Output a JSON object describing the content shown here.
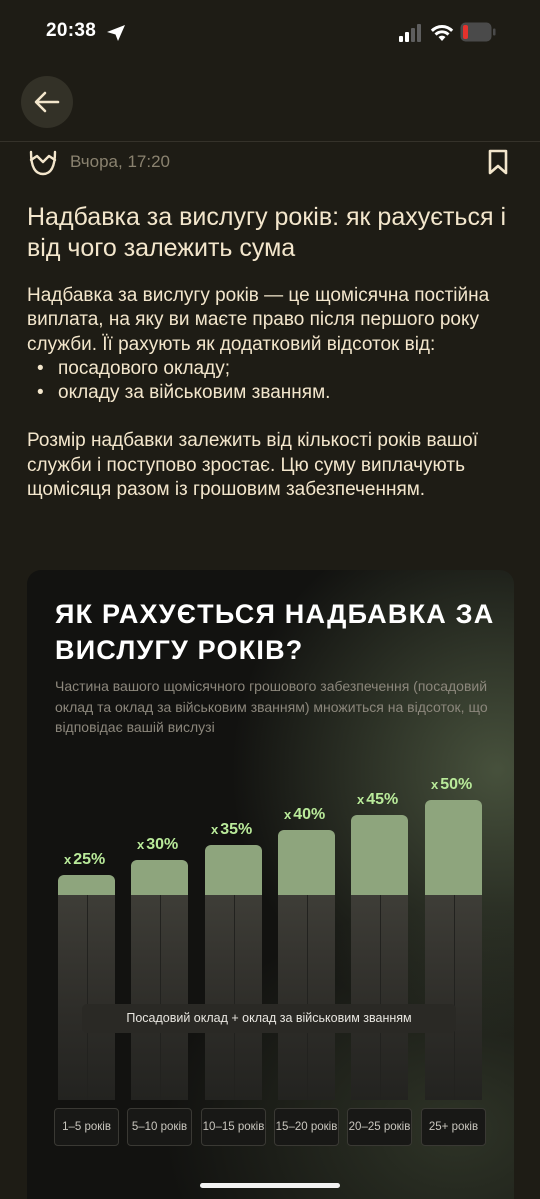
{
  "status_bar": {
    "time": "20:38"
  },
  "article": {
    "date": "Вчора, 17:20",
    "title": "Надбавка за вислугу років: як рахується і від чого залежить сума",
    "intro": "Надбавка за вислугу років — це щомісячна постійна виплата, на яку ви маєте право після першого року служби. Її рахують як додатковий відсоток від:",
    "bullets": [
      "посадового окладу;",
      "окладу за військовим званням."
    ],
    "paragraph2": "Розмір надбавки залежить від кількості років вашої служби і поступово зростає. Цю суму виплачують щомісяця разом із грошовим забезпеченням."
  },
  "infographic": {
    "heading": "ЯК РАХУЄТЬСЯ НАДБАВКА ЗА ВИСЛУГУ РОКІВ?",
    "subtitle": "Частина вашого щомісячного грошового забезпечення (посадовий оклад та оклад за військовим званням) множиться на відсоток, що відповідає вашій вислузі",
    "base_label": "Посадовий оклад + оклад за військовим званням",
    "multiplier_sign": "x",
    "tiers": [
      {
        "years": "1–5 років",
        "percent": "25%",
        "value": 25
      },
      {
        "years": "5–10 років",
        "percent": "30%",
        "value": 30
      },
      {
        "years": "10–15 років",
        "percent": "35%",
        "value": 35
      },
      {
        "years": "15–20 років",
        "percent": "40%",
        "value": 40
      },
      {
        "years": "20–25 років",
        "percent": "45%",
        "value": 45
      },
      {
        "years": "25+ років",
        "percent": "50%",
        "value": 50
      }
    ],
    "accent_color": "#8ea57d",
    "label_color": "#b9ea9a"
  }
}
